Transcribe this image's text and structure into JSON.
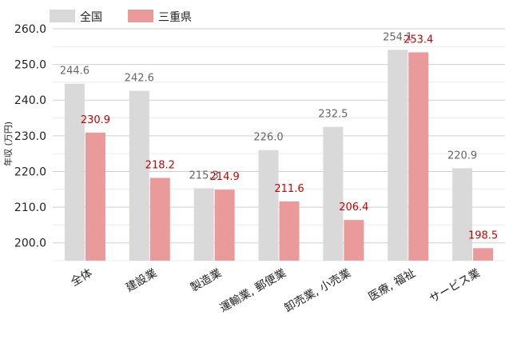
{
  "chart_data": {
    "type": "bar",
    "title": "",
    "xlabel": "",
    "ylabel": "年収 (万円)",
    "ylim": [
      195,
      260
    ],
    "yticks": [
      200,
      210,
      220,
      230,
      240,
      250,
      260
    ],
    "ytick_labels": [
      "200.0",
      "210.0",
      "220.0",
      "230.0",
      "240.0",
      "250.0",
      "260.0"
    ],
    "categories": [
      "全体",
      "建設業",
      "製造業",
      "運輸業, 郵便業",
      "卸売業, 小売業",
      "医療, 福祉",
      "サービス業"
    ],
    "series": [
      {
        "name": "全国",
        "color": "#d9d9d9",
        "label_color": "#666666",
        "values": [
          244.6,
          242.6,
          215.3,
          226.0,
          232.5,
          254.1,
          220.9
        ],
        "labels": [
          "244.6",
          "242.6",
          "215.3",
          "226.0",
          "232.5",
          "254.1",
          "220.9"
        ]
      },
      {
        "name": "三重県",
        "color": "#ea9a9a",
        "label_color": "#cc0000",
        "values": [
          230.9,
          218.2,
          214.9,
          211.6,
          206.4,
          253.4,
          198.5
        ],
        "labels": [
          "230.9",
          "218.2",
          "214.9",
          "211.6",
          "206.4",
          "253.4",
          "198.5"
        ]
      }
    ],
    "grid": true,
    "legend_position": "top-left"
  }
}
